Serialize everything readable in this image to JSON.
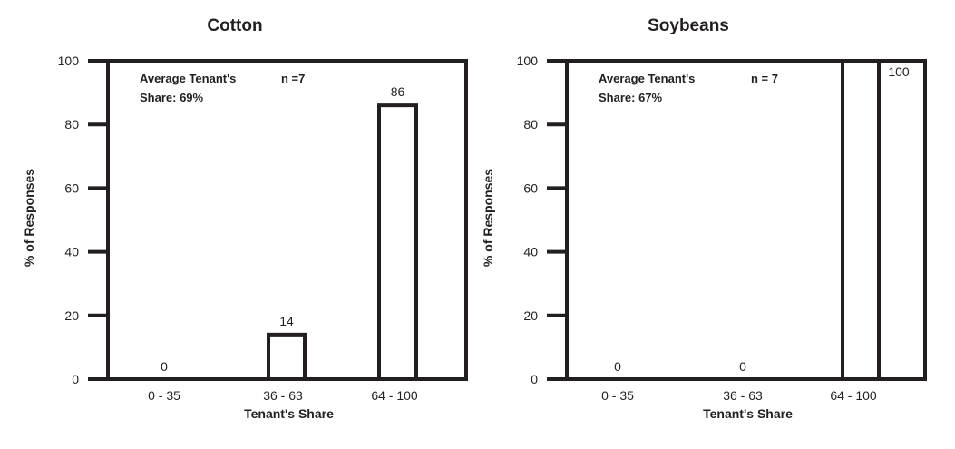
{
  "chart_data": [
    {
      "type": "bar",
      "title": "Cotton",
      "categories": [
        "0 - 35",
        "36 - 63",
        "64 - 100"
      ],
      "values": [
        0,
        14,
        86
      ],
      "data_labels": [
        "0",
        "14",
        "86"
      ],
      "xlabel": "Tenant's Share",
      "ylabel": "% of Responses",
      "ylim": [
        0,
        100
      ],
      "yticks": [
        "0",
        "20",
        "40",
        "60",
        "80",
        "100"
      ],
      "annotation_line1": "Average Tenant's",
      "annotation_line2": "Share: 69%",
      "n_label": "n =7",
      "grid": false
    },
    {
      "type": "bar",
      "title": "Soybeans",
      "categories": [
        "0 - 35",
        "36 - 63",
        "64 - 100"
      ],
      "values": [
        0,
        0,
        100
      ],
      "data_labels": [
        "0",
        "0",
        "100"
      ],
      "xlabel": "Tenant's Share",
      "ylabel": "% of Responses",
      "ylim": [
        0,
        100
      ],
      "yticks": [
        "0",
        "20",
        "40",
        "60",
        "80",
        "100"
      ],
      "annotation_line1": "Average Tenant's",
      "annotation_line2": "Share: 67%",
      "n_label": "n = 7",
      "grid": false
    }
  ],
  "colors": {
    "ink": "#231f20"
  }
}
